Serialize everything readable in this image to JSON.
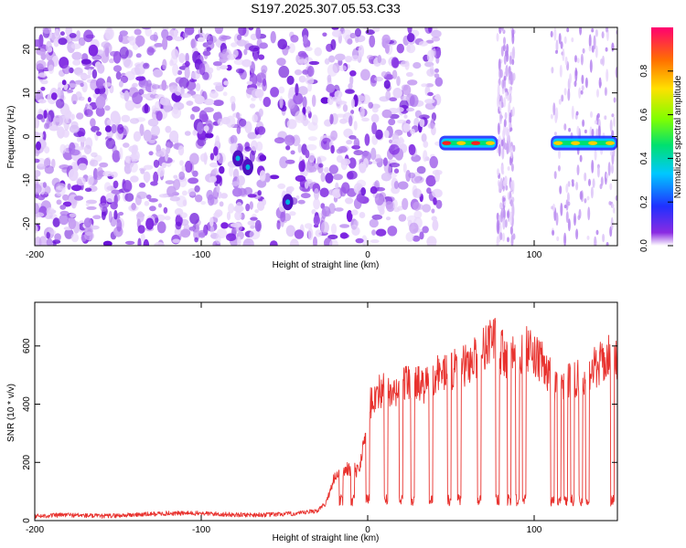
{
  "figure_title": "S197.2025.307.05.53.C33",
  "colors": {
    "snr_line": "#e8322e",
    "axis": "#000000",
    "spec_purple": "#7a20e0"
  },
  "chart_data": [
    {
      "type": "heatmap",
      "xlabel": "Height of straight line (km)",
      "ylabel": "Frequency (Hz)",
      "xlim": [
        -200,
        150
      ],
      "ylim": [
        -25,
        25
      ],
      "xticks": [
        -200,
        -100,
        0,
        100
      ],
      "xtick_labels": [
        "-200",
        "-100",
        "0",
        "100"
      ],
      "yticks": [
        -20,
        -10,
        0,
        10,
        20
      ],
      "ytick_labels": [
        "-20",
        "-10",
        "0",
        "10",
        "20"
      ],
      "colorbar": {
        "label": "Normalized spectral amplitude",
        "range": [
          0,
          1
        ],
        "ticks": [
          0.0,
          0.2,
          0.4,
          0.6,
          0.8
        ],
        "tick_labels": [
          "0.0",
          "0.2",
          "0.4",
          "0.6",
          "0.8"
        ]
      },
      "noise_region_km": [
        -200,
        43
      ],
      "data_gaps_km": [
        [
          43,
          78
        ],
        [
          88,
          110
        ]
      ],
      "signal_segments": [
        {
          "x_range": [
            43,
            78
          ],
          "freq_hz": -1.5,
          "peak_amplitude": 0.95
        },
        {
          "x_range": [
            110,
            150
          ],
          "freq_hz": -1.5,
          "peak_amplitude": 0.8
        }
      ]
    },
    {
      "type": "line",
      "xlabel": "Height of straight line (km)",
      "ylabel": "SNR (10 * v/v)",
      "xlim": [
        -200,
        150
      ],
      "ylim": [
        0,
        750
      ],
      "xticks": [
        -200,
        -100,
        0,
        100
      ],
      "xtick_labels": [
        "-200",
        "-100",
        "0",
        "100"
      ],
      "yticks": [
        0,
        200,
        400,
        600
      ],
      "ytick_labels": [
        "0",
        "200",
        "400",
        "600"
      ],
      "series": [
        {
          "name": "SNR",
          "x": [
            -200,
            -180,
            -160,
            -140,
            -120,
            -100,
            -80,
            -60,
            -40,
            -30,
            -25,
            -20,
            -15,
            -10,
            -5,
            0,
            5,
            10,
            15,
            20,
            25,
            30,
            35,
            40,
            45,
            50,
            55,
            60,
            65,
            70,
            75,
            80,
            85,
            90,
            95,
            100,
            105,
            110,
            115,
            120,
            125,
            130,
            135,
            140,
            145,
            150
          ],
          "values": [
            15,
            20,
            15,
            20,
            25,
            25,
            20,
            20,
            25,
            35,
            60,
            150,
            170,
            180,
            170,
            380,
            440,
            450,
            420,
            470,
            480,
            470,
            460,
            500,
            510,
            520,
            520,
            540,
            560,
            590,
            640,
            580,
            560,
            580,
            590,
            560,
            540,
            490,
            440,
            470,
            490,
            500,
            520,
            540,
            560,
            540
          ]
        }
      ],
      "dropouts_km": [
        -21,
        -16,
        -9,
        0,
        11,
        20,
        27,
        38,
        49,
        55,
        67,
        78,
        85,
        90,
        94,
        111,
        115,
        119,
        123,
        128,
        132,
        147
      ]
    }
  ]
}
